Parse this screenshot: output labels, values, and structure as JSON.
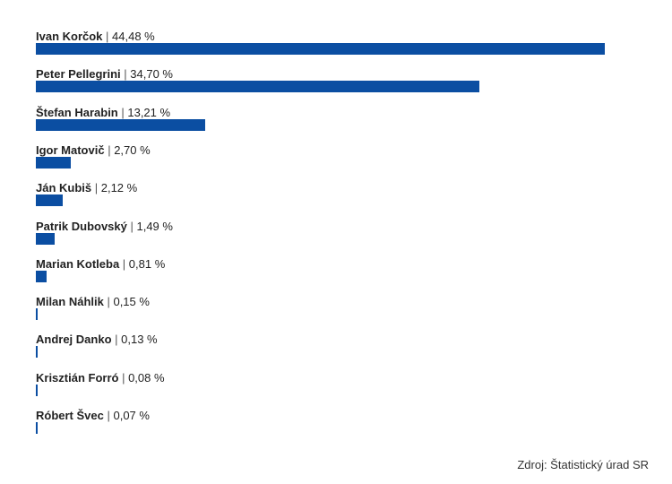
{
  "chart_data": {
    "type": "bar",
    "orientation": "horizontal",
    "categories": [
      "Ivan Korčok",
      "Peter Pellegrini",
      "Štefan Harabin",
      "Igor Matovič",
      "Ján Kubiš",
      "Patrik Dubovský",
      "Marian Kotleba",
      "Milan Náhlik",
      "Andrej Danko",
      "Krisztián Forró",
      "Róbert Švec"
    ],
    "values": [
      44.48,
      34.7,
      13.21,
      2.7,
      2.12,
      1.49,
      0.81,
      0.15,
      0.13,
      0.08,
      0.07
    ],
    "value_labels": [
      "44,48 %",
      "34,70 %",
      "13,21 %",
      "2,70 %",
      "2,12 %",
      "1,49 %",
      "0,81 %",
      "0,15 %",
      "0,13 %",
      "0,08 %",
      "0,07 %"
    ],
    "bar_color": "#0b4ea2",
    "xlim": [
      0,
      44.48
    ],
    "grid": false,
    "legend": "none"
  },
  "source": "Zdroj: Štatistický úrad SR"
}
